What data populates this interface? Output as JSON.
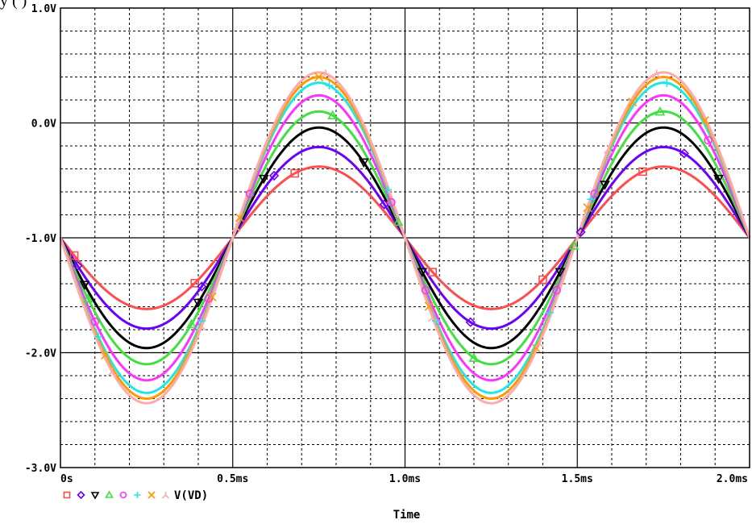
{
  "header_fragment": "y   (   )                                                                ",
  "chart_data": {
    "type": "line",
    "xlabel": "Time",
    "ylabel": "",
    "title": "",
    "xlim": [
      0,
      2.05
    ],
    "ylim": [
      -3.0,
      1.0
    ],
    "grid": true,
    "legend_placement": "bottom-left",
    "x_ticks": [
      {
        "v": 0,
        "label": "0s"
      },
      {
        "v": 0.5,
        "label": "0.5ms"
      },
      {
        "v": 1.0,
        "label": "1.0ms"
      },
      {
        "v": 1.5,
        "label": "1.5ms"
      },
      {
        "v": 2.0,
        "label": "2.0ms"
      }
    ],
    "y_ticks": [
      {
        "v": 1.0,
        "label": "1.0V"
      },
      {
        "v": 0.0,
        "label": "0.0V"
      },
      {
        "v": -1.0,
        "label": "-1.0V"
      },
      {
        "v": -2.0,
        "label": "-2.0V"
      },
      {
        "v": -3.0,
        "label": "-3.0V"
      }
    ],
    "legend_label": "V(VD)",
    "offset": -1.0,
    "period_ms": 1.0,
    "series": [
      {
        "amplitude": 0.62,
        "color": "#ff4d4d",
        "marker": "square",
        "marker_x": [
          0.04,
          0.39,
          0.68,
          1.08,
          1.4,
          1.69
        ]
      },
      {
        "amplitude": 0.79,
        "color": "#6a00ff",
        "marker": "diamond",
        "marker_x": [
          0.05,
          0.41,
          0.62,
          0.94,
          1.19,
          1.51,
          1.81
        ]
      },
      {
        "amplitude": 0.96,
        "color": "#000000",
        "marker": "triangle-down",
        "marker_x": [
          0.07,
          0.4,
          0.59,
          0.88,
          1.05,
          1.45,
          1.58,
          1.91
        ]
      },
      {
        "amplitude": 1.1,
        "color": "#40e040",
        "marker": "triangle-up",
        "marker_x": [
          0.08,
          0.38,
          0.79,
          0.98,
          1.2,
          1.49,
          1.74
        ]
      },
      {
        "amplitude": 1.24,
        "color": "#ff33ff",
        "marker": "circle",
        "marker_x": [
          0.1,
          0.43,
          0.55,
          0.96,
          1.06,
          1.44,
          1.55,
          1.88
        ]
      },
      {
        "amplitude": 1.35,
        "color": "#22e6e6",
        "marker": "plus",
        "marker_x": [
          0.11,
          0.41,
          0.78,
          0.95,
          1.09,
          1.42,
          1.54,
          1.76
        ]
      },
      {
        "amplitude": 1.4,
        "color": "#ff9900",
        "marker": "x",
        "marker_x": [
          0.13,
          0.44,
          0.52,
          0.75,
          1.07,
          1.38,
          1.53,
          1.66,
          1.87
        ]
      },
      {
        "amplitude": 1.44,
        "color": "#ffaaaa",
        "marker": "y",
        "marker_x": [
          0.15,
          0.41,
          0.51,
          0.77,
          1.08,
          1.39,
          1.59,
          1.73
        ]
      }
    ]
  }
}
